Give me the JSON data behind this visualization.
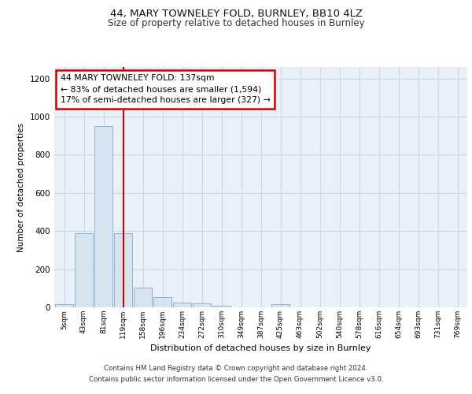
{
  "title1": "44, MARY TOWNELEY FOLD, BURNLEY, BB10 4LZ",
  "title2": "Size of property relative to detached houses in Burnley",
  "xlabel": "Distribution of detached houses by size in Burnley",
  "ylabel": "Number of detached properties",
  "categories": [
    "5sqm",
    "43sqm",
    "81sqm",
    "119sqm",
    "158sqm",
    "196sqm",
    "234sqm",
    "272sqm",
    "310sqm",
    "349sqm",
    "387sqm",
    "425sqm",
    "463sqm",
    "502sqm",
    "540sqm",
    "578sqm",
    "616sqm",
    "654sqm",
    "693sqm",
    "731sqm",
    "769sqm"
  ],
  "values": [
    15,
    390,
    950,
    390,
    105,
    55,
    25,
    20,
    10,
    0,
    0,
    15,
    0,
    0,
    0,
    0,
    0,
    0,
    0,
    0,
    0
  ],
  "bar_color": "#d6e4f0",
  "bar_edge_color": "#7aabcf",
  "red_line_x": 3.0,
  "ylim": [
    0,
    1260
  ],
  "yticks": [
    0,
    200,
    400,
    600,
    800,
    1000,
    1200
  ],
  "annotation_lines": [
    "44 MARY TOWNELEY FOLD: 137sqm",
    "← 83% of detached houses are smaller (1,594)",
    "17% of semi-detached houses are larger (327) →"
  ],
  "annotation_box_color": "#ffffff",
  "annotation_box_edge_color": "#cc0000",
  "red_line_color": "#cc0000",
  "footer_line1": "Contains HM Land Registry data © Crown copyright and database right 2024.",
  "footer_line2": "Contains public sector information licensed under the Open Government Licence v3.0.",
  "grid_color": "#c8d8ea",
  "background_color": "#eaf0f8"
}
